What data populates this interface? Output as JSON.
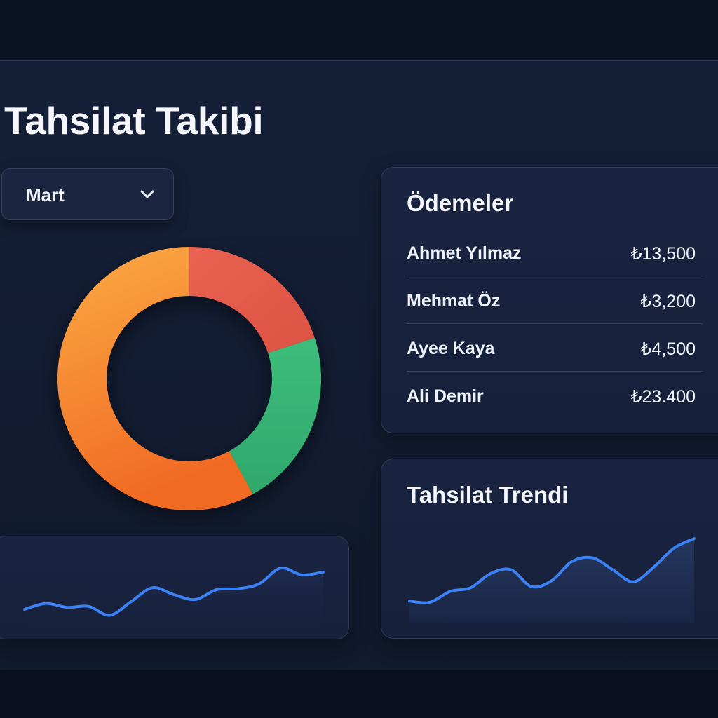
{
  "header": {
    "title": "Tahsilat Takibi"
  },
  "filter": {
    "month": "Mart"
  },
  "colors": {
    "background": "#0b1222",
    "panel": "#152038",
    "card": "#1a2441",
    "line": "#3b82f6",
    "donut_orange": "#f7983a",
    "donut_red": "#e85e4a",
    "donut_green": "#35b274"
  },
  "icons": {
    "dropdown": "chevron-down-icon"
  },
  "payments": {
    "title": "Ödemeler",
    "rows": [
      {
        "name": "Ahmet Yılmaz",
        "amount": "₺13,500"
      },
      {
        "name": "Mehmat Öz",
        "amount": "₺3,200"
      },
      {
        "name": "Ayee Kaya",
        "amount": "₺4,500"
      },
      {
        "name": "Ali Demir",
        "amount": "₺23.400"
      }
    ]
  },
  "trend": {
    "title": "Tahsilat Trendi"
  },
  "chart_data": [
    {
      "type": "pie",
      "style": "donut",
      "slices": [
        {
          "value": 20,
          "color": "#e85e4a"
        },
        {
          "value": 22,
          "color": "#35b274"
        },
        {
          "value": 58,
          "color": "#f7983a"
        }
      ]
    },
    {
      "type": "area",
      "x": [
        1,
        2,
        3,
        4,
        5,
        6,
        7,
        8,
        9,
        10,
        11,
        12,
        13,
        14,
        15
      ],
      "values": [
        18,
        17,
        26,
        29,
        41,
        44,
        30,
        35,
        51,
        54,
        44,
        34,
        46,
        62,
        70
      ],
      "ylim": [
        0,
        80
      ],
      "grid": false
    },
    {
      "type": "line",
      "x": [
        1,
        2,
        3,
        4,
        5,
        6,
        7,
        8,
        9,
        10,
        11,
        12,
        13,
        14,
        15
      ],
      "values": [
        20,
        26,
        22,
        23,
        14,
        28,
        42,
        35,
        30,
        40,
        41,
        46,
        62,
        55,
        58
      ],
      "ylim": [
        0,
        80
      ],
      "grid": false
    }
  ]
}
